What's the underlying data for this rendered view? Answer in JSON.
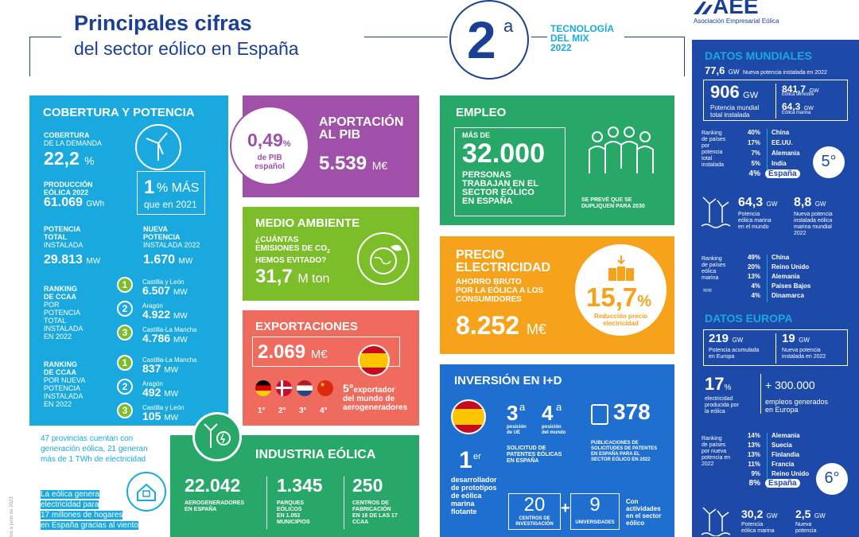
{
  "header": {
    "title": "Principales cifras",
    "subtitle": "del sector eólico en España",
    "rank": "2",
    "rank_sup": "a",
    "tech_line1": "TECNOLOGÍA",
    "tech_line2": "DEL MIX",
    "tech_year": "2022",
    "logo": "AEE",
    "logo_sub": "Asociación Empresarial Eólica"
  },
  "cobertura": {
    "title": "COBERTURA Y POTENCIA",
    "cob_label1": "COBERTURA",
    "cob_label2": "DE LA DEMANDA",
    "cob_value": "22,2",
    "cob_unit": "%",
    "prod_label1": "PRODUCCIÓN",
    "prod_label2": "EÓLICA 2022",
    "prod_value": "61.069",
    "prod_unit": "GWh",
    "more_value": "1",
    "more_text": "% MÁS",
    "more_text2": "que en 2021",
    "pot_label1": "POTENCIA",
    "pot_label2": "TOTAL",
    "pot_label3": "INSTALADA",
    "pot_value": "29.813",
    "pot_unit": "MW",
    "new_label1": "NUEVA",
    "new_label2": "POTENCIA",
    "new_label3": "INSTALADA 2022",
    "new_value": "1.670",
    "new_unit": "MW",
    "rank1_label": [
      "RANKING",
      "DE CCAA",
      "POR",
      "POTENCIA",
      "TOTAL",
      "INSTALADA",
      "EN 2022"
    ],
    "rank1": [
      {
        "n": "1",
        "region": "Castilla y León",
        "value": "6.507",
        "unit": "MW"
      },
      {
        "n": "2",
        "region": "Aragón",
        "value": "4.922",
        "unit": "MW"
      },
      {
        "n": "3",
        "region": "Castilla-La Mancha",
        "value": "4.786",
        "unit": "MW"
      }
    ],
    "rank2_label": [
      "RANKING",
      "DE CCAA",
      "POR NUEVA",
      "POTENCIA",
      "INSTALADA",
      "EN 2022"
    ],
    "rank2": [
      {
        "n": "1",
        "region": "Castilla-La Mancha",
        "value": "837",
        "unit": "MW"
      },
      {
        "n": "2",
        "region": "Aragón",
        "value": "492",
        "unit": "MW"
      },
      {
        "n": "3",
        "region": "Castilla y León",
        "value": "105",
        "unit": "MW"
      }
    ],
    "provinces_text": "47 provincias cuentan con generación eólica, 21 generan más de 1 TWh de electricidad",
    "hogares": [
      "La eólica genera",
      "electricidad para",
      "17 millones de hogares",
      "en España gracias al viento"
    ],
    "side_note": "tos a junio de 2023"
  },
  "pib": {
    "circle_value": "0,49",
    "circle_unit": "%",
    "circle_text1": "de PIB",
    "circle_text2": "español",
    "title1": "APORTACIÓN",
    "title2": "AL PIB",
    "value": "5.539",
    "unit": "M€"
  },
  "ambiente": {
    "title": "MEDIO AMBIENTE",
    "q1": "¿CUÁNTAS",
    "q2": "EMISIONES DE CO",
    "q2_sub": "2",
    "q3": "HEMOS EVITADO?",
    "value": "31,7",
    "unit": "M ton"
  },
  "export": {
    "title": "EXPORTACIONES",
    "value": "2.069",
    "unit": "M€",
    "ranks": [
      "1°",
      "2°",
      "3°",
      "4°"
    ],
    "pos": "5°",
    "pos_text1": "exportador",
    "pos_text2": "del mundo de",
    "pos_text3": "aerogeneradores"
  },
  "empleo": {
    "title": "EMPLEO",
    "mas_de": "MÁS DE",
    "value": "32.000",
    "text": [
      "PERSONAS",
      "TRABAJAN EN EL",
      "SECTOR EÓLICO",
      "EN ESPAÑA"
    ],
    "note1": "SE PREVÉ QUE SE",
    "note2": "DUPLIQUEN PARA 2030"
  },
  "precio": {
    "title1": "PRECIO",
    "title2": "ELECTRICIDAD",
    "text": [
      "AHORRO BRUTO",
      "POR LA EÓLICA A LOS",
      "CONSUMIDORES"
    ],
    "value": "8.252",
    "unit": "M€",
    "circle_value": "15,7",
    "circle_unit": "%",
    "circle_text1": "Reducción precio",
    "circle_text2": "electricidad"
  },
  "industria": {
    "title": "INDUSTRIA EÓLICA",
    "items": [
      {
        "value": "22.042",
        "label": [
          "AEROGENERADORES",
          "EN ESPAÑA"
        ]
      },
      {
        "value": "1.345",
        "label": [
          "PARQUES",
          "EÓLICOS",
          "EN 1.053",
          "MUNICIPIOS"
        ]
      },
      {
        "value": "250",
        "label": [
          "CENTROS DE",
          "FABRICACIÓN",
          "EN 16 DE LAS 17",
          "CCAA"
        ]
      }
    ]
  },
  "inversion": {
    "title": "INVERSIÓN EN I+D",
    "first": "1",
    "first_sup": "er",
    "first_text": [
      "desarrollador",
      "de prototipos",
      "de eólica",
      "marina",
      "flotante"
    ],
    "ue_value": "3",
    "ue_sup": "a",
    "ue_label": [
      "posición",
      "de UE"
    ],
    "mundo_value": "4",
    "mundo_sup": "a",
    "mundo_label": [
      "posición",
      "del mundo"
    ],
    "patentes": [
      "SOLICITUD DE",
      "PATENTES EÓLICAS",
      "EN ESPAÑA"
    ],
    "pub_value": "378",
    "pub_text": [
      "PUBLICACIONES DE",
      "SOLICITUDES DE PATENTES",
      "EN ESPAÑA PARA EL",
      "SECTOR EÓLICO EN 2022"
    ],
    "centros_value": "20",
    "centros_label": [
      "CENTROS DE",
      "INVESTIGACIÓN"
    ],
    "plus": "+",
    "univ_value": "9",
    "univ_label": "UNIVERSIDADES",
    "act_text": [
      "Con",
      "actividades",
      "en el sector",
      "eólico"
    ]
  },
  "mundiales": {
    "title": "DATOS MUNDIALES",
    "nueva_value": "77,6",
    "nueva_unit": "GW",
    "nueva_text": "Nueva potencia instalada en 2022",
    "total_value": "906",
    "total_unit": "GW",
    "total_text1": "Potencia mundial",
    "total_text2": "total instalada",
    "terr_value": "841,7",
    "terr_unit": "GW",
    "terr_text": "Eólica terrestre",
    "mar_value": "64,3",
    "mar_unit": "GW",
    "mar_text": "Eólica marina",
    "rank_label": [
      "Ranking",
      "de países",
      "por",
      "potencia",
      "total",
      "instalada"
    ],
    "rank": [
      {
        "pct": "40%",
        "country": "China"
      },
      {
        "pct": "17%",
        "country": "EE.UU."
      },
      {
        "pct": "7%",
        "country": "Alemania"
      },
      {
        "pct": "5%",
        "country": "India"
      },
      {
        "pct": "4%",
        "country": "España"
      }
    ],
    "rank_pos": "5°",
    "marina_value": "64,3",
    "marina_unit": "GW",
    "marina_text": [
      "Potencia",
      "eólica marina",
      "en el mundo"
    ],
    "nmar_value": "8,8",
    "nmar_unit": "GW",
    "nmar_text": [
      "Nueva potencia",
      "instalada eólica",
      "marina mundial",
      "2022"
    ],
    "rankm_label": [
      "Ranking",
      "de países",
      "eólica",
      "marina"
    ],
    "rankm": [
      {
        "pct": "49%",
        "country": "China"
      },
      {
        "pct": "20%",
        "country": "Reino Unido"
      },
      {
        "pct": "13%",
        "country": "Alemania"
      },
      {
        "pct": "4%",
        "country": "Países Bajos"
      },
      {
        "pct": "4%",
        "country": "Dinamarca"
      }
    ]
  },
  "europa": {
    "title": "DATOS EUROPA",
    "acum_value": "219",
    "acum_unit": "GW",
    "acum_text1": "Potencia acumulada",
    "acum_text2": "en Europa",
    "nueva_value": "19",
    "nueva_unit": "GW",
    "nueva_text1": "Nueva potencia",
    "nueva_text2": "instalada en 2022",
    "elec_value": "17",
    "elec_unit": "%",
    "elec_text": [
      "electricidad",
      "producida por",
      "la eólica"
    ],
    "emp_value": "+ 300.000",
    "emp_text1": "empleos generados",
    "emp_text2": "en Europa",
    "rank_label": [
      "Ranking",
      "de países",
      "por nueva",
      "potencia en",
      "2022"
    ],
    "rank": [
      {
        "pct": "14%",
        "country": "Alemania"
      },
      {
        "pct": "13%",
        "country": "Suecia"
      },
      {
        "pct": "13%",
        "country": "Finlandia"
      },
      {
        "pct": "11%",
        "country": "Francia"
      },
      {
        "pct": "9%",
        "country": "Reino Unido"
      },
      {
        "pct": "8%",
        "country": "España"
      }
    ],
    "rank_pos": "6°",
    "marina_value": "30,2",
    "marina_unit": "GW",
    "marina_text": [
      "Potencia",
      "eólica marina"
    ],
    "nmar_value": "2,5",
    "nmar_unit": "GW",
    "nmar_text": [
      "Nueva",
      "potencia"
    ]
  },
  "colors": {
    "navy": "#1a3f94",
    "cyan": "#19a9df",
    "purple": "#a050a8",
    "lime": "#7cbd2a",
    "coral": "#ee6b5e",
    "green": "#27a868",
    "orange": "#f6a21b",
    "blue": "#1f6fd0",
    "teal": "#1fa89a",
    "darkblue": "#1d4aa8"
  }
}
